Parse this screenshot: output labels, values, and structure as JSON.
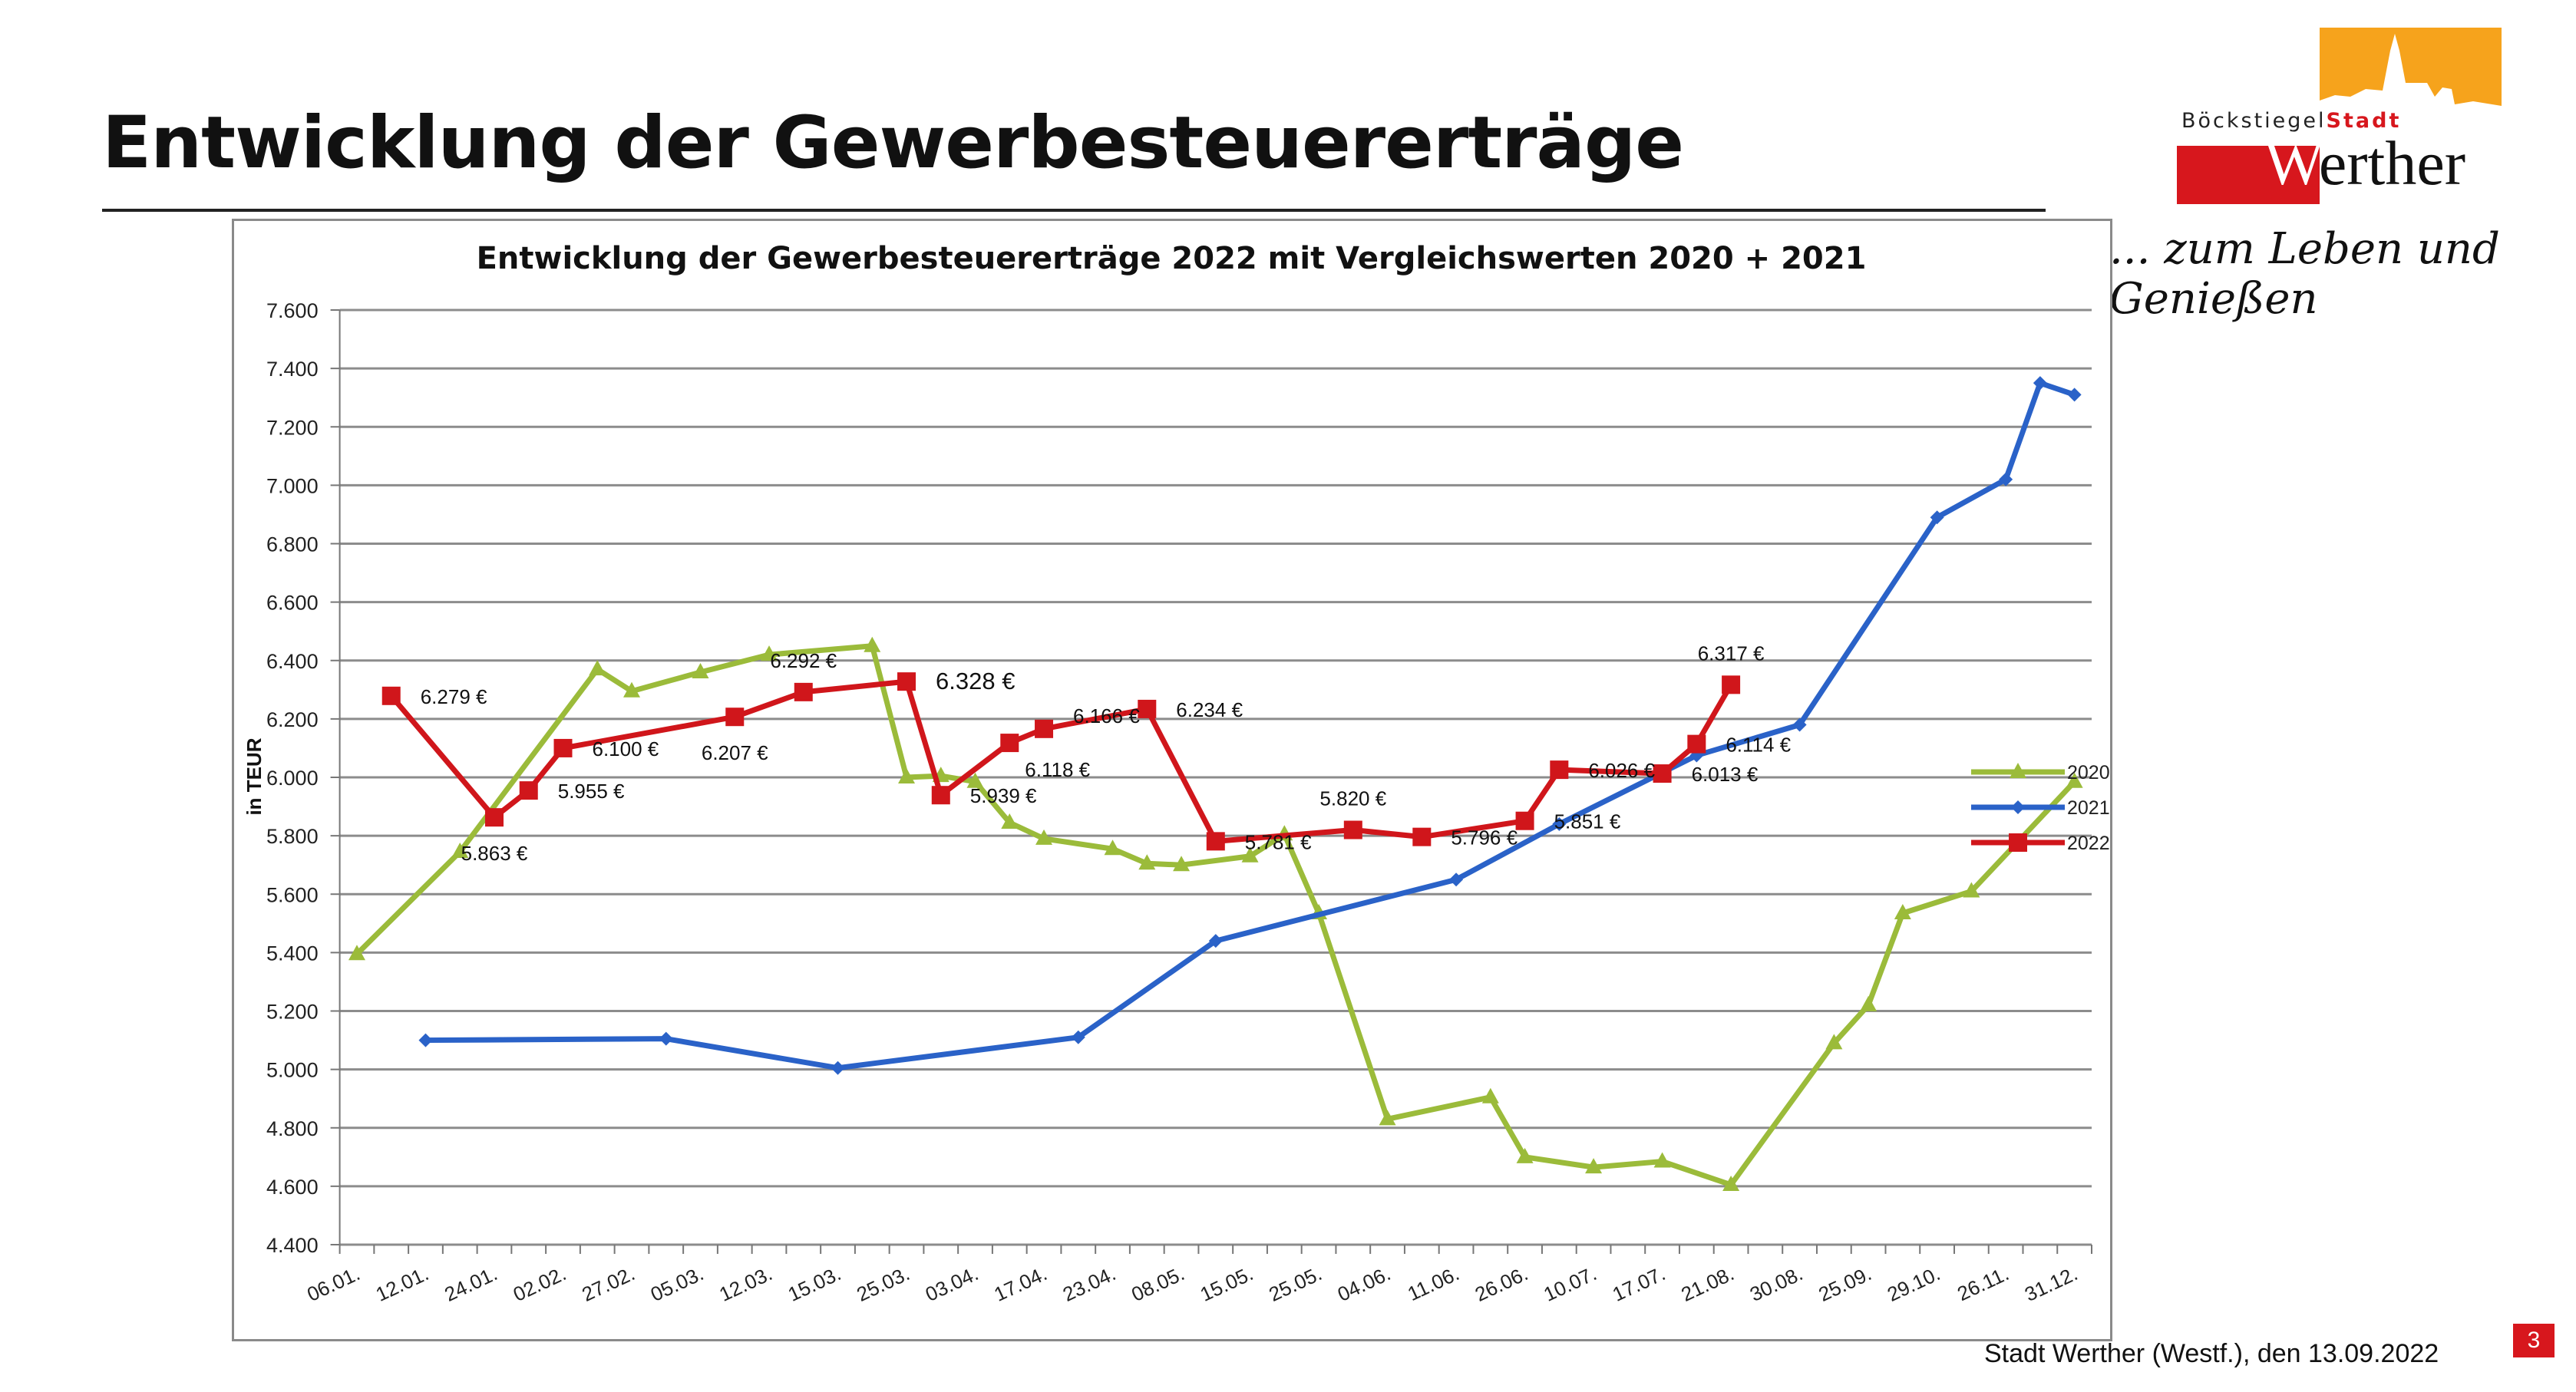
{
  "slide": {
    "title": "Entwicklung der Gewerbesteuererträge",
    "footer": "Stadt Werther (Westf.), den 13.09.2022",
    "page_number": "3"
  },
  "logo": {
    "prefix": "Böckstiegel",
    "prefix_accent": "Stadt",
    "name_initial": "W",
    "name_rest": "erther",
    "tagline": "... zum Leben und Genießen",
    "colors": {
      "orange": "#f6a31c",
      "red": "#d7171d"
    }
  },
  "chart_data": {
    "type": "line",
    "title": "Entwicklung der Gewerbesteuererträge 2022 mit Vergleichswerten 2020 + 2021",
    "xlabel": "",
    "ylabel": "in TEUR",
    "ylim": [
      4400,
      7600
    ],
    "y_ticks": [
      4400,
      4600,
      4800,
      5000,
      5200,
      5400,
      5600,
      5800,
      6000,
      6200,
      6400,
      6600,
      6800,
      7000,
      7200,
      7400,
      7600
    ],
    "y_tick_labels": [
      "4.400",
      "4.600",
      "4.800",
      "5.000",
      "5.200",
      "5.400",
      "5.600",
      "5.800",
      "6.000",
      "6.200",
      "6.400",
      "6.600",
      "6.800",
      "7.000",
      "7.200",
      "7.400",
      "7.600"
    ],
    "grid": true,
    "legend_position": "right",
    "categories": [
      "06.01.",
      "",
      "12.01.",
      "",
      "24.01.",
      "",
      "02.02.",
      "",
      "27.02.",
      "",
      "05.03.",
      "",
      "12.03.",
      "",
      "15.03.",
      "",
      "25.03.",
      "",
      "03.04.",
      "",
      "17.04.",
      "",
      "23.04.",
      "",
      "08.05.",
      "",
      "15.05.",
      "",
      "25.05.",
      "",
      "04.06.",
      "",
      "11.06.",
      "",
      "26.06.",
      "",
      "10.07.",
      "",
      "17.07.",
      "",
      "21.08.",
      "",
      "30.08.",
      "",
      "25.09.",
      "",
      "29.10.",
      "",
      "26.11.",
      "",
      "31.12."
    ],
    "series": [
      {
        "name": "2020",
        "color": "#9bbb3a",
        "marker": "triangle",
        "values": [
          5395,
          null,
          null,
          5745,
          null,
          null,
          null,
          6370,
          6295,
          null,
          6360,
          null,
          6420,
          null,
          null,
          6450,
          6000,
          6005,
          5985,
          5845,
          5790,
          null,
          5755,
          5705,
          5700,
          null,
          5730,
          5805,
          5535,
          null,
          4830,
          null,
          null,
          4905,
          4700,
          null,
          4665,
          null,
          4685,
          null,
          4605,
          null,
          null,
          5090,
          5220,
          5535,
          null,
          5610,
          null,
          null,
          5985
        ]
      },
      {
        "name": "2021",
        "color": "#2a62c8",
        "marker": "diamond",
        "values": [
          null,
          null,
          5100,
          null,
          null,
          null,
          null,
          null,
          null,
          5105,
          null,
          null,
          null,
          null,
          5005,
          null,
          null,
          null,
          null,
          null,
          null,
          5110,
          null,
          null,
          null,
          5440,
          null,
          null,
          null,
          null,
          null,
          null,
          5650,
          null,
          null,
          5840,
          null,
          null,
          null,
          6075,
          null,
          null,
          6180,
          null,
          null,
          null,
          6890,
          null,
          7020,
          7350,
          7310
        ]
      },
      {
        "name": "2022",
        "color": "#d0161b",
        "marker": "square",
        "values": [
          null,
          6279,
          null,
          null,
          5863,
          5955,
          6100,
          null,
          null,
          null,
          null,
          6207,
          null,
          6292,
          null,
          null,
          6328,
          5939,
          null,
          6118,
          6166,
          null,
          null,
          6234,
          null,
          5781,
          null,
          null,
          null,
          5820,
          null,
          5796,
          null,
          null,
          5851,
          6026,
          null,
          null,
          6013,
          6114,
          6317,
          null,
          null,
          null,
          null,
          null,
          null,
          null,
          null,
          null,
          null
        ],
        "data_labels": [
          null,
          "6.279 €",
          null,
          null,
          "5.863 €",
          "5.955 €",
          "6.100 €",
          null,
          null,
          null,
          null,
          "6.207 €",
          null,
          "6.292 €",
          null,
          null,
          "6.328 €",
          "5.939 €",
          null,
          "6.118 €",
          "6.166 €",
          null,
          null,
          "6.234 €",
          null,
          "5.781 €",
          null,
          null,
          null,
          "5.820 €",
          null,
          "5.796 €",
          null,
          null,
          "5.851 €",
          "6.026 €",
          null,
          null,
          "6.013 €",
          "6.114 €",
          "6.317 €",
          null,
          null,
          null,
          null,
          null,
          null,
          null,
          null,
          null,
          null
        ]
      }
    ]
  }
}
